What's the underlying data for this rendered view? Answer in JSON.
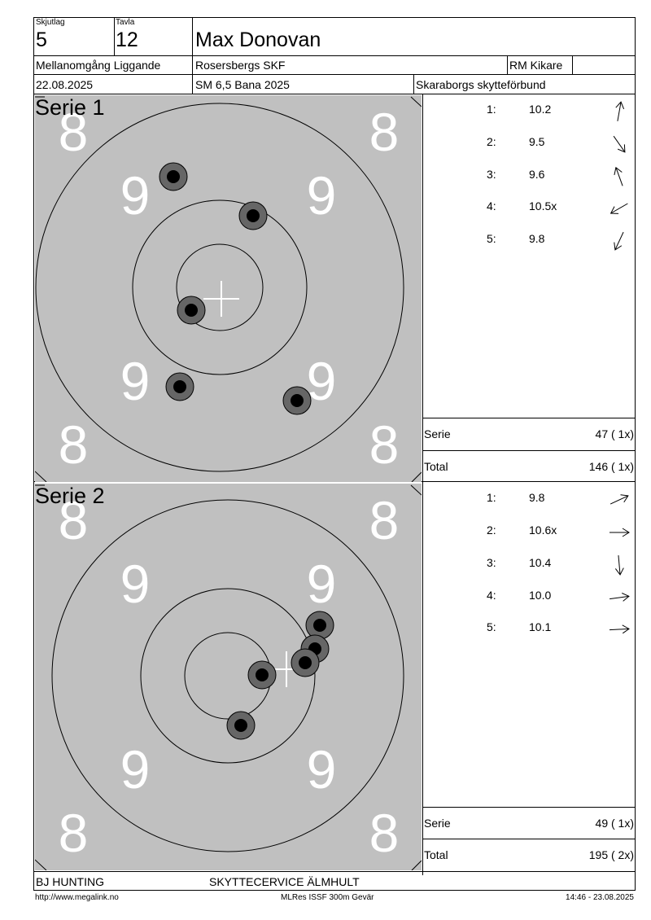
{
  "header": {
    "skjutlag_label": "Skjutlag",
    "skjutlag_value": "5",
    "tavla_label": "Tavla",
    "tavla_value": "12",
    "name": "Max Donovan",
    "class": "Mellanomgång Liggande",
    "club": "Rosersbergs SKF",
    "sight": "RM Kikare",
    "date": "22.08.2025",
    "competition": "SM 6,5 Bana 2025",
    "federation": "Skaraborgs skytteförbund"
  },
  "target": {
    "ring_numbers": {
      "outer": "8",
      "inner": "9"
    },
    "background_color": "#c0c0c0"
  },
  "series": [
    {
      "title": "Serie 1",
      "shots": [
        {
          "no": "1:",
          "value": "10.2",
          "direction": "up"
        },
        {
          "no": "2:",
          "value": "9.5",
          "direction": "down-right"
        },
        {
          "no": "3:",
          "value": "9.6",
          "direction": "up-left"
        },
        {
          "no": "4:",
          "value": "10.5x",
          "direction": "down-left"
        },
        {
          "no": "5:",
          "value": "9.8",
          "direction": "down-left"
        }
      ],
      "serie_label": "Serie",
      "serie_value": "47 ( 1x)",
      "total_label": "Total",
      "total_value": "146 ( 1x)"
    },
    {
      "title": "Serie 2",
      "shots": [
        {
          "no": "1:",
          "value": "9.8",
          "direction": "up-right"
        },
        {
          "no": "2:",
          "value": "10.6x",
          "direction": "right"
        },
        {
          "no": "3:",
          "value": "10.4",
          "direction": "down"
        },
        {
          "no": "4:",
          "value": "10.0",
          "direction": "right"
        },
        {
          "no": "5:",
          "value": "10.1",
          "direction": "right"
        }
      ],
      "serie_label": "Serie",
      "serie_value": "49 ( 1x)",
      "total_label": "Total",
      "total_value": "195 ( 2x)"
    }
  ],
  "footer": {
    "sponsor_left": "BJ HUNTING",
    "sponsor_right": "SKYTTECERVICE ÄLMHULT",
    "url": "http://www.megalink.no",
    "software": "MLRes ISSF 300m Gevär",
    "timestamp": "14:46 - 23.08.2025"
  }
}
